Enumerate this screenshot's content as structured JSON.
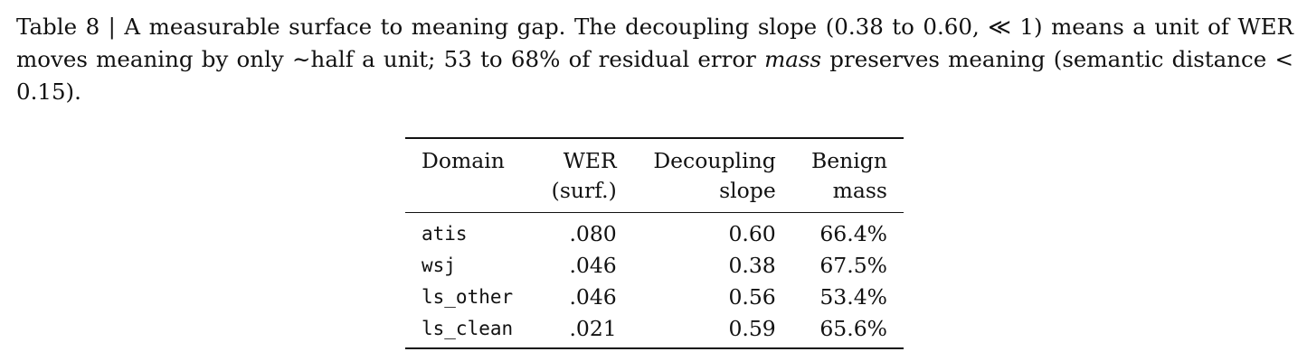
{
  "caption": {
    "part1": "Table 8 | A measurable surface to meaning gap. The decoupling slope (0.38 to 0.60, ≪ 1) means a unit of WER moves meaning by only ∼half a unit; 53 to 68% of residual error ",
    "emph": "mass",
    "part2": " preserves meaning (semantic distance < 0.15)."
  },
  "table": {
    "headers": [
      {
        "line1": "Domain",
        "line2": ""
      },
      {
        "line1": "WER",
        "line2": "(surf.)"
      },
      {
        "line1": "Decoupling",
        "line2": "slope"
      },
      {
        "line1": "Benign",
        "line2": "mass"
      }
    ],
    "rows": [
      {
        "domain": "atis",
        "wer": ".080",
        "slope": "0.60",
        "benign": "66.4%"
      },
      {
        "domain": "wsj",
        "wer": ".046",
        "slope": "0.38",
        "benign": "67.5%"
      },
      {
        "domain": "ls_other",
        "wer": ".046",
        "slope": "0.56",
        "benign": "53.4%"
      },
      {
        "domain": "ls_clean",
        "wer": ".021",
        "slope": "0.59",
        "benign": "65.6%"
      }
    ]
  }
}
